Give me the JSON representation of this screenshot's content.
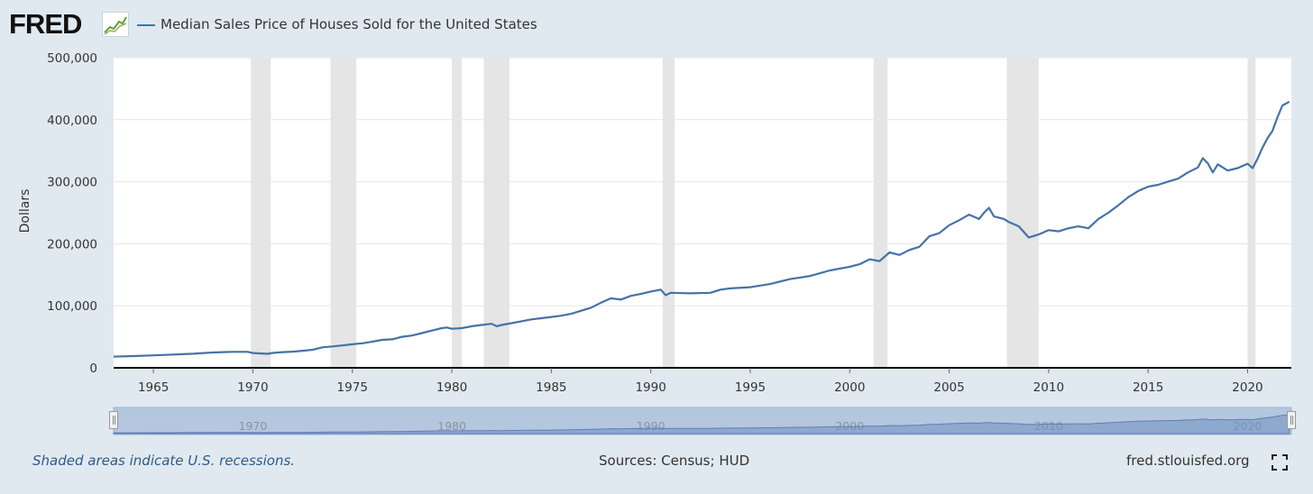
{
  "header": {
    "logo_text": "FRED",
    "logo_icon": "trend-chart-icon",
    "legend_label": "Median Sales Price of Houses Sold for the United States"
  },
  "colors": {
    "background": "#e1e9f0",
    "plot_background": "#ffffff",
    "series": "#4572a7",
    "recession": "#e5e5e5",
    "navigator_fill": "#b5c6df",
    "navigator_line": "#5c7fb5"
  },
  "chart_data": {
    "type": "line",
    "title": "",
    "xlabel": "",
    "ylabel": "Dollars",
    "xlim": [
      1963.0,
      2022.2
    ],
    "ylim": [
      0,
      500000
    ],
    "x_ticks": [
      1965,
      1970,
      1975,
      1980,
      1985,
      1990,
      1995,
      2000,
      2005,
      2010,
      2015,
      2020
    ],
    "y_ticks": [
      0,
      100000,
      200000,
      300000,
      400000,
      500000
    ],
    "y_tick_labels": [
      "0",
      "100,000",
      "200,000",
      "300,000",
      "400,000",
      "500,000"
    ],
    "grid": true,
    "legend_position": "top-left",
    "recessions": [
      [
        1969.9,
        1970.9
      ],
      [
        1973.9,
        1975.2
      ],
      [
        1980.0,
        1980.5
      ],
      [
        1981.6,
        1982.9
      ],
      [
        1990.6,
        1991.2
      ],
      [
        2001.2,
        2001.9
      ],
      [
        2007.9,
        2009.5
      ],
      [
        2020.0,
        2020.4
      ]
    ],
    "series": [
      {
        "name": "Median Sales Price of Houses Sold for the United States",
        "points": [
          [
            1963.0,
            18000
          ],
          [
            1964.0,
            18900
          ],
          [
            1965.0,
            20000
          ],
          [
            1966.0,
            21400
          ],
          [
            1967.0,
            22700
          ],
          [
            1968.0,
            24700
          ],
          [
            1969.0,
            25700
          ],
          [
            1969.75,
            25700
          ],
          [
            1970.0,
            23900
          ],
          [
            1970.75,
            22500
          ],
          [
            1971.0,
            24000
          ],
          [
            1971.5,
            25300
          ],
          [
            1972.0,
            26000
          ],
          [
            1972.5,
            27500
          ],
          [
            1973.0,
            29000
          ],
          [
            1973.5,
            33000
          ],
          [
            1974.0,
            34500
          ],
          [
            1974.5,
            36000
          ],
          [
            1975.0,
            38000
          ],
          [
            1975.5,
            39500
          ],
          [
            1976.0,
            42000
          ],
          [
            1976.5,
            45000
          ],
          [
            1977.0,
            46000
          ],
          [
            1977.5,
            50000
          ],
          [
            1978.0,
            52000
          ],
          [
            1978.5,
            56000
          ],
          [
            1979.0,
            60000
          ],
          [
            1979.5,
            64000
          ],
          [
            1979.75,
            65000
          ],
          [
            1980.0,
            63000
          ],
          [
            1980.5,
            64000
          ],
          [
            1981.0,
            67000
          ],
          [
            1981.5,
            69000
          ],
          [
            1982.0,
            71000
          ],
          [
            1982.25,
            67000
          ],
          [
            1982.5,
            69000
          ],
          [
            1983.0,
            72000
          ],
          [
            1983.5,
            75000
          ],
          [
            1984.0,
            78000
          ],
          [
            1984.5,
            80000
          ],
          [
            1985.0,
            82000
          ],
          [
            1985.5,
            84000
          ],
          [
            1986.0,
            87000
          ],
          [
            1986.5,
            92000
          ],
          [
            1987.0,
            97000
          ],
          [
            1987.5,
            105000
          ],
          [
            1988.0,
            112000
          ],
          [
            1988.5,
            110000
          ],
          [
            1989.0,
            116000
          ],
          [
            1989.5,
            119000
          ],
          [
            1990.0,
            123000
          ],
          [
            1990.5,
            126000
          ],
          [
            1990.75,
            117000
          ],
          [
            1991.0,
            121000
          ],
          [
            1992.0,
            120000
          ],
          [
            1993.0,
            121000
          ],
          [
            1993.5,
            126000
          ],
          [
            1994.0,
            128000
          ],
          [
            1995.0,
            130000
          ],
          [
            1996.0,
            135000
          ],
          [
            1997.0,
            143000
          ],
          [
            1998.0,
            148000
          ],
          [
            1999.0,
            157000
          ],
          [
            2000.0,
            163000
          ],
          [
            2000.5,
            167000
          ],
          [
            2001.0,
            175000
          ],
          [
            2001.5,
            172000
          ],
          [
            2002.0,
            186000
          ],
          [
            2002.5,
            182000
          ],
          [
            2003.0,
            190000
          ],
          [
            2003.5,
            195000
          ],
          [
            2004.0,
            212000
          ],
          [
            2004.5,
            217000
          ],
          [
            2005.0,
            230000
          ],
          [
            2005.5,
            238000
          ],
          [
            2006.0,
            247000
          ],
          [
            2006.5,
            240000
          ],
          [
            2006.75,
            250000
          ],
          [
            2007.0,
            258000
          ],
          [
            2007.25,
            244000
          ],
          [
            2007.75,
            240000
          ],
          [
            2008.0,
            235000
          ],
          [
            2008.5,
            228000
          ],
          [
            2009.0,
            210000
          ],
          [
            2009.5,
            215000
          ],
          [
            2010.0,
            222000
          ],
          [
            2010.5,
            220000
          ],
          [
            2011.0,
            225000
          ],
          [
            2011.5,
            228000
          ],
          [
            2012.0,
            225000
          ],
          [
            2012.5,
            240000
          ],
          [
            2013.0,
            250000
          ],
          [
            2013.5,
            262000
          ],
          [
            2014.0,
            275000
          ],
          [
            2014.5,
            285000
          ],
          [
            2015.0,
            292000
          ],
          [
            2015.5,
            295000
          ],
          [
            2016.0,
            300000
          ],
          [
            2016.5,
            305000
          ],
          [
            2017.0,
            315000
          ],
          [
            2017.5,
            323000
          ],
          [
            2017.75,
            338000
          ],
          [
            2018.0,
            330000
          ],
          [
            2018.25,
            315000
          ],
          [
            2018.5,
            328000
          ],
          [
            2019.0,
            318000
          ],
          [
            2019.5,
            322000
          ],
          [
            2020.0,
            329000
          ],
          [
            2020.25,
            322000
          ],
          [
            2020.5,
            337000
          ],
          [
            2020.75,
            355000
          ],
          [
            2021.0,
            370000
          ],
          [
            2021.25,
            382000
          ],
          [
            2021.5,
            404000
          ],
          [
            2021.75,
            423000
          ],
          [
            2022.1,
            429000
          ]
        ]
      }
    ],
    "navigator": {
      "x_ticks": [
        1970,
        1980,
        1990,
        2000,
        2010,
        2020
      ]
    }
  },
  "footer": {
    "note": "Shaded areas indicate U.S. recessions.",
    "source": "Sources: Census; HUD",
    "site": "fred.stlouisfed.org",
    "fullscreen_icon": "fullscreen-icon"
  }
}
